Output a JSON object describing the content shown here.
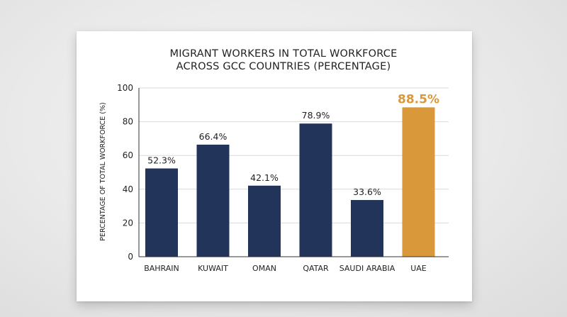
{
  "chart_data": {
    "type": "bar",
    "title": [
      "MIGRANT WORKERS IN TOTAL WORKFORCE",
      "ACROSS GCC COUNTRIES (PERCENTAGE)"
    ],
    "xlabel": "",
    "ylabel": "PERCENTAGE OF TOTAL WORKFORCE (%)",
    "categories": [
      "BAHRAIN",
      "KUWAIT",
      "OMAN",
      "QATAR",
      "SAUDI ARABIA",
      "UAE"
    ],
    "values": [
      52.3,
      66.4,
      42.1,
      78.9,
      33.6,
      88.5
    ],
    "value_labels": [
      "52.3%",
      "66.4%",
      "42.1%",
      "78.9%",
      "33.6%",
      "88.5%"
    ],
    "ylim": [
      0,
      100
    ],
    "yticks": [
      0,
      20,
      40,
      60,
      80,
      100
    ],
    "grid": true,
    "highlight_index": 5,
    "colors": {
      "bar": "#22345a",
      "highlight": "#d9983a",
      "grid": "#d9d9d9",
      "axis": "#333333"
    }
  }
}
